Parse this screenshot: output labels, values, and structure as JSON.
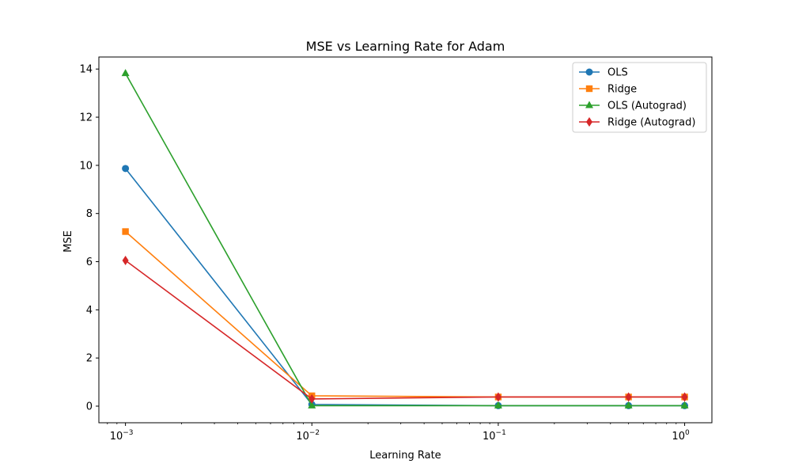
{
  "chart_data": {
    "type": "line",
    "title": "MSE vs Learning Rate for Adam",
    "xlabel": "Learning Rate",
    "ylabel": "MSE",
    "xscale": "log",
    "xlim": [
      0.00072,
      1.4
    ],
    "ylim": [
      -0.69,
      14.5
    ],
    "grid": false,
    "legend_position": "top-right",
    "x": [
      0.001,
      0.01,
      0.1,
      0.5,
      1
    ],
    "xticks": [
      {
        "value": 0.001,
        "base": "10",
        "exp": "−3"
      },
      {
        "value": 0.01,
        "base": "10",
        "exp": "−2"
      },
      {
        "value": 0.1,
        "base": "10",
        "exp": "−1"
      },
      {
        "value": 1,
        "base": "10",
        "exp": "0"
      }
    ],
    "yticks": [
      0,
      2,
      4,
      6,
      8,
      10,
      12,
      14
    ],
    "series": [
      {
        "name": "OLS",
        "color": "#1f77b4",
        "marker": "circle",
        "values": [
          9.87,
          0.07,
          0.02,
          0.02,
          0.02
        ]
      },
      {
        "name": "Ridge",
        "color": "#ff7f0e",
        "marker": "square",
        "values": [
          7.25,
          0.43,
          0.38,
          0.38,
          0.38
        ]
      },
      {
        "name": "OLS (Autograd)",
        "color": "#2ca02c",
        "marker": "triangle",
        "values": [
          13.82,
          0.02,
          0.02,
          0.02,
          0.02
        ]
      },
      {
        "name": "Ridge (Autograd)",
        "color": "#d62728",
        "marker": "diamond",
        "values": [
          6.05,
          0.3,
          0.38,
          0.38,
          0.38
        ]
      }
    ]
  }
}
